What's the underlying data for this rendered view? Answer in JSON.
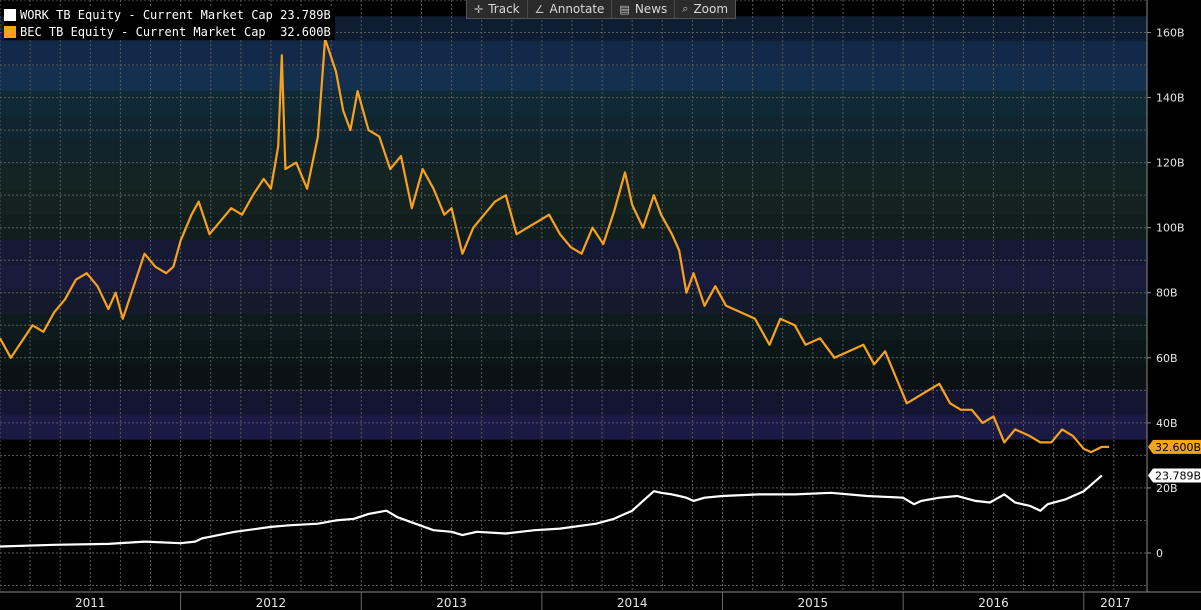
{
  "toolbar": {
    "track": "Track",
    "annotate": "Annotate",
    "news": "News",
    "zoom": "Zoom"
  },
  "legend": [
    {
      "label": "WORK TB Equity - Current Market Cap",
      "value": "23.789B",
      "color": "#ffffff"
    },
    {
      "label": "BEC TB Equity - Current Market Cap",
      "value": "32.600B",
      "color": "#f7a21b"
    }
  ],
  "chart_data": {
    "type": "line",
    "title": "",
    "xlabel": "",
    "ylabel": "",
    "ylim": [
      -12,
      170
    ],
    "xlim": [
      2011.0,
      2017.35
    ],
    "y_ticks": [
      0,
      20,
      40,
      60,
      80,
      100,
      120,
      140,
      160
    ],
    "y_tick_labels": [
      "0",
      "20B",
      "40B",
      "60B",
      "80B",
      "100B",
      "120B",
      "140B",
      "160B"
    ],
    "x_tick_labels": [
      "2011",
      "2012",
      "2013",
      "2014",
      "2015",
      "2016",
      "2017"
    ],
    "x_tick_positions": [
      2011,
      2012,
      2013,
      2014,
      2015,
      2016,
      2017
    ],
    "grid": true,
    "axis_position": "right",
    "series": [
      {
        "name": "BEC TB Equity - Current Market Cap",
        "color": "#f7a21b",
        "last_label": "32.600B",
        "x": [
          2011.0,
          2011.06,
          2011.12,
          2011.18,
          2011.24,
          2011.3,
          2011.36,
          2011.42,
          2011.48,
          2011.54,
          2011.6,
          2011.64,
          2011.68,
          2011.74,
          2011.8,
          2011.86,
          2011.92,
          2011.96,
          2012.0,
          2012.06,
          2012.1,
          2012.16,
          2012.22,
          2012.28,
          2012.34,
          2012.4,
          2012.46,
          2012.5,
          2012.54,
          2012.56,
          2012.58,
          2012.64,
          2012.7,
          2012.76,
          2012.8,
          2012.86,
          2012.9,
          2012.94,
          2012.98,
          2013.04,
          2013.1,
          2013.16,
          2013.22,
          2013.28,
          2013.34,
          2013.4,
          2013.46,
          2013.5,
          2013.56,
          2013.62,
          2013.68,
          2013.74,
          2013.8,
          2013.86,
          2013.92,
          2013.98,
          2014.04,
          2014.1,
          2014.16,
          2014.22,
          2014.28,
          2014.34,
          2014.4,
          2014.46,
          2014.5,
          2014.56,
          2014.62,
          2014.66,
          2014.72,
          2014.76,
          2014.8,
          2014.84,
          2014.9,
          2014.96,
          2015.02,
          2015.1,
          2015.18,
          2015.26,
          2015.32,
          2015.4,
          2015.46,
          2015.54,
          2015.62,
          2015.7,
          2015.78,
          2015.84,
          2015.9,
          2015.96,
          2016.02,
          2016.08,
          2016.14,
          2016.2,
          2016.26,
          2016.32,
          2016.38,
          2016.44,
          2016.5,
          2016.56,
          2016.62,
          2016.7,
          2016.76,
          2016.82,
          2016.88,
          2016.94,
          2017.0,
          2017.04,
          2017.1,
          2017.14
        ],
        "values": [
          66,
          60,
          65,
          70,
          68,
          74,
          78,
          84,
          86,
          82,
          75,
          80,
          72,
          82,
          92,
          88,
          86,
          88,
          96,
          104,
          108,
          98,
          102,
          106,
          104,
          110,
          115,
          112,
          125,
          153,
          118,
          120,
          112,
          128,
          158,
          148,
          136,
          130,
          142,
          130,
          128,
          118,
          122,
          106,
          118,
          112,
          104,
          106,
          92,
          100,
          104,
          108,
          110,
          98,
          100,
          102,
          104,
          98,
          94,
          92,
          100,
          95,
          105,
          117,
          107,
          100,
          110,
          104,
          98,
          93,
          80,
          86,
          76,
          82,
          76,
          74,
          72,
          64,
          72,
          70,
          64,
          66,
          60,
          62,
          64,
          58,
          62,
          54,
          46,
          48,
          50,
          52,
          46,
          44,
          44,
          40,
          42,
          34,
          38,
          36,
          34,
          34,
          38,
          36,
          32,
          31,
          32.6,
          32.6
        ]
      },
      {
        "name": "WORK TB Equity - Current Market Cap",
        "color": "#ffffff",
        "last_label": "23.789B",
        "x": [
          2011.0,
          2011.3,
          2011.6,
          2011.8,
          2012.0,
          2012.08,
          2012.12,
          2012.3,
          2012.5,
          2012.6,
          2012.76,
          2012.86,
          2012.96,
          2013.04,
          2013.14,
          2013.2,
          2013.3,
          2013.4,
          2013.5,
          2013.56,
          2013.64,
          2013.8,
          2013.96,
          2014.1,
          2014.3,
          2014.4,
          2014.46,
          2014.5,
          2014.56,
          2014.62,
          2014.66,
          2014.72,
          2014.76,
          2014.8,
          2014.84,
          2014.9,
          2015.0,
          2015.2,
          2015.4,
          2015.6,
          2015.8,
          2016.0,
          2016.06,
          2016.1,
          2016.2,
          2016.3,
          2016.4,
          2016.48,
          2016.56,
          2016.62,
          2016.7,
          2016.76,
          2016.8,
          2016.9,
          2017.0,
          2017.1
        ],
        "values": [
          2,
          2.5,
          2.8,
          3.5,
          3,
          3.5,
          4.5,
          6.5,
          8,
          8.5,
          9,
          10,
          10.5,
          12,
          13,
          11,
          9,
          7,
          6.5,
          5.5,
          6.5,
          6,
          7,
          7.5,
          9,
          10.5,
          12,
          13,
          16,
          19,
          18.5,
          18,
          17.5,
          17,
          16,
          17,
          17.5,
          18,
          18,
          18.5,
          17.5,
          17,
          15,
          16,
          17,
          17.5,
          16,
          15.5,
          18,
          15.5,
          14.5,
          13,
          15,
          16.5,
          19,
          23.8
        ]
      }
    ]
  }
}
